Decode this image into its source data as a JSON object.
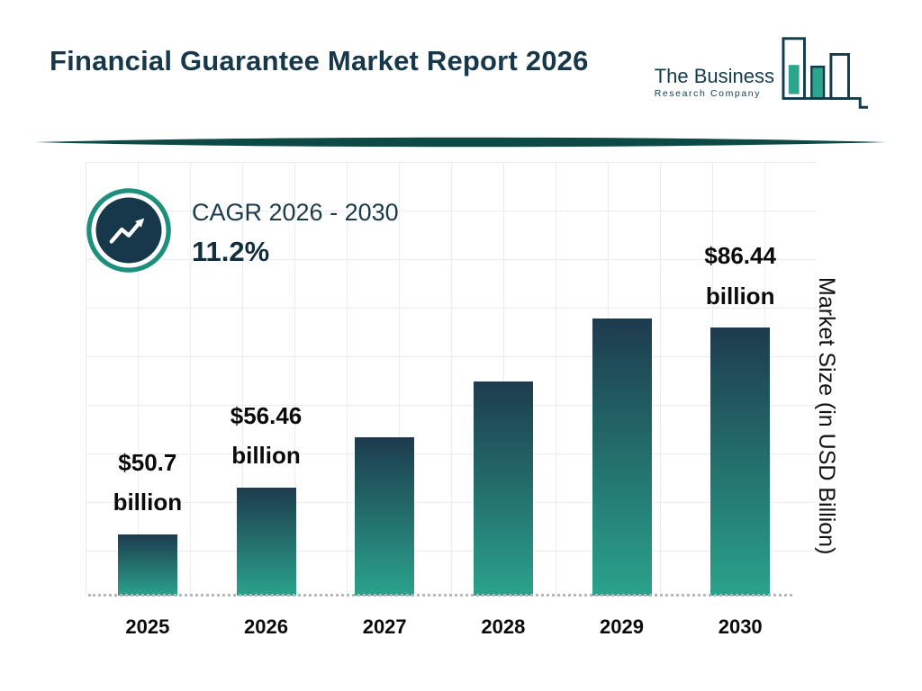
{
  "header": {
    "title": "Financial Guarantee Market Report 2026",
    "logo": {
      "line1": "The Business",
      "line2": "Research Company",
      "icon": "bar-chart-logo-icon"
    }
  },
  "cagr": {
    "icon": "trend-up-icon",
    "label": "CAGR 2026 - 2030",
    "value": "11.2%"
  },
  "colors": {
    "navy": "#17374a",
    "teal": "#2aa28b",
    "ring_teal": "#1d8f7c",
    "divider": "#0d4a45",
    "grid": "#ececec",
    "bar_gradient_top": "#1d3b4e",
    "bar_gradient_bottom": "#2aa28b"
  },
  "chart_data": {
    "type": "bar",
    "title": "Financial Guarantee Market Report 2026",
    "categories": [
      "2025",
      "2026",
      "2027",
      "2028",
      "2029",
      "2030"
    ],
    "values": [
      50.7,
      56.46,
      62.8,
      69.8,
      77.6,
      86.44
    ],
    "value_labels": [
      [
        "$50.7",
        "billion"
      ],
      [
        "$56.46",
        "billion"
      ],
      null,
      null,
      null,
      [
        "$86.44",
        "billion"
      ]
    ],
    "xlabel": "",
    "ylabel": "Market Size (in USD Billion)",
    "ylim": [
      43,
      88
    ],
    "grid": true,
    "legend": false,
    "annotations": [
      "CAGR 2026 - 2030",
      "11.2%"
    ]
  }
}
